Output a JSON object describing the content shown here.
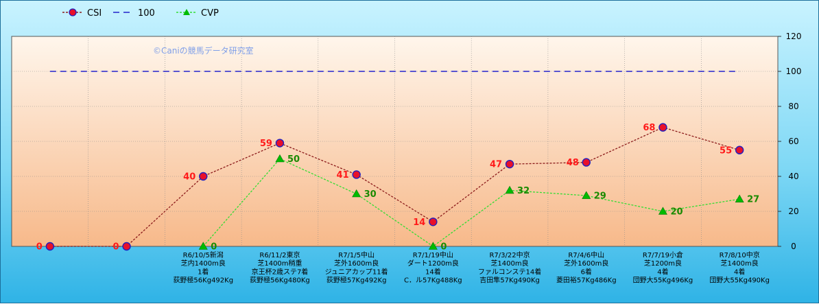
{
  "chart_data": {
    "type": "line",
    "watermark": "©Caniの競馬データ研究室",
    "ylim": [
      0,
      120
    ],
    "yticks": [
      "0",
      "20",
      "40",
      "60",
      "80",
      "100",
      "120"
    ],
    "categories": [
      [],
      [],
      [
        "R6/10/5新潟",
        "芝内1400m良",
        "1着",
        "荻野極56Kg492Kg"
      ],
      [
        "R6/11/2東京",
        "芝1400m稍重",
        "京王杯2歳ステ7着",
        "荻野極56Kg480Kg"
      ],
      [
        "R7/1/5中山",
        "芝外1600m良",
        "ジュニアカップ11着",
        "荻野極57Kg492Kg"
      ],
      [
        "R7/1/19中山",
        "ダート1200m良",
        "14着",
        "C．ル57Kg488Kg"
      ],
      [
        "R7/3/22中京",
        "芝1400m良",
        "ファルコンステ14着",
        "吉田隼57Kg490Kg"
      ],
      [
        "R7/4/6中山",
        "芝外1600m良",
        "6着",
        "菱田裕57Kg486Kg"
      ],
      [
        "R7/7/19小倉",
        "芝1200m良",
        "4着",
        "団野大55Kg496Kg"
      ],
      [
        "R7/8/10中京",
        "芝1400m良",
        "4着",
        "団野大55Kg490Kg"
      ]
    ],
    "series": [
      {
        "name": "CSI",
        "color": "#8b1a1a",
        "marker_fill": "#e8102a",
        "marker_edge": "#2020c0",
        "label_color": "#ff1a1a",
        "values": [
          0,
          0,
          40,
          59,
          41,
          14,
          47,
          48,
          68,
          55
        ],
        "labels": [
          "0",
          "0",
          "40",
          "59",
          "41",
          "14",
          "47",
          "48",
          "68",
          "55"
        ]
      },
      {
        "name": "100",
        "color": "#2222cc",
        "values": [
          100,
          100,
          100,
          100,
          100,
          100,
          100,
          100,
          100,
          100
        ],
        "labels": []
      },
      {
        "name": "CVP",
        "color": "#33dd33",
        "marker_fill": "#00bb00",
        "label_color": "#1a8a00",
        "values": [
          null,
          null,
          0,
          50,
          30,
          0,
          32,
          29,
          20,
          27
        ],
        "labels": [
          "",
          "",
          "0",
          "50",
          "30",
          "0",
          "32",
          "29",
          "20",
          "27"
        ]
      }
    ],
    "legend": "top-left",
    "grid": true
  }
}
